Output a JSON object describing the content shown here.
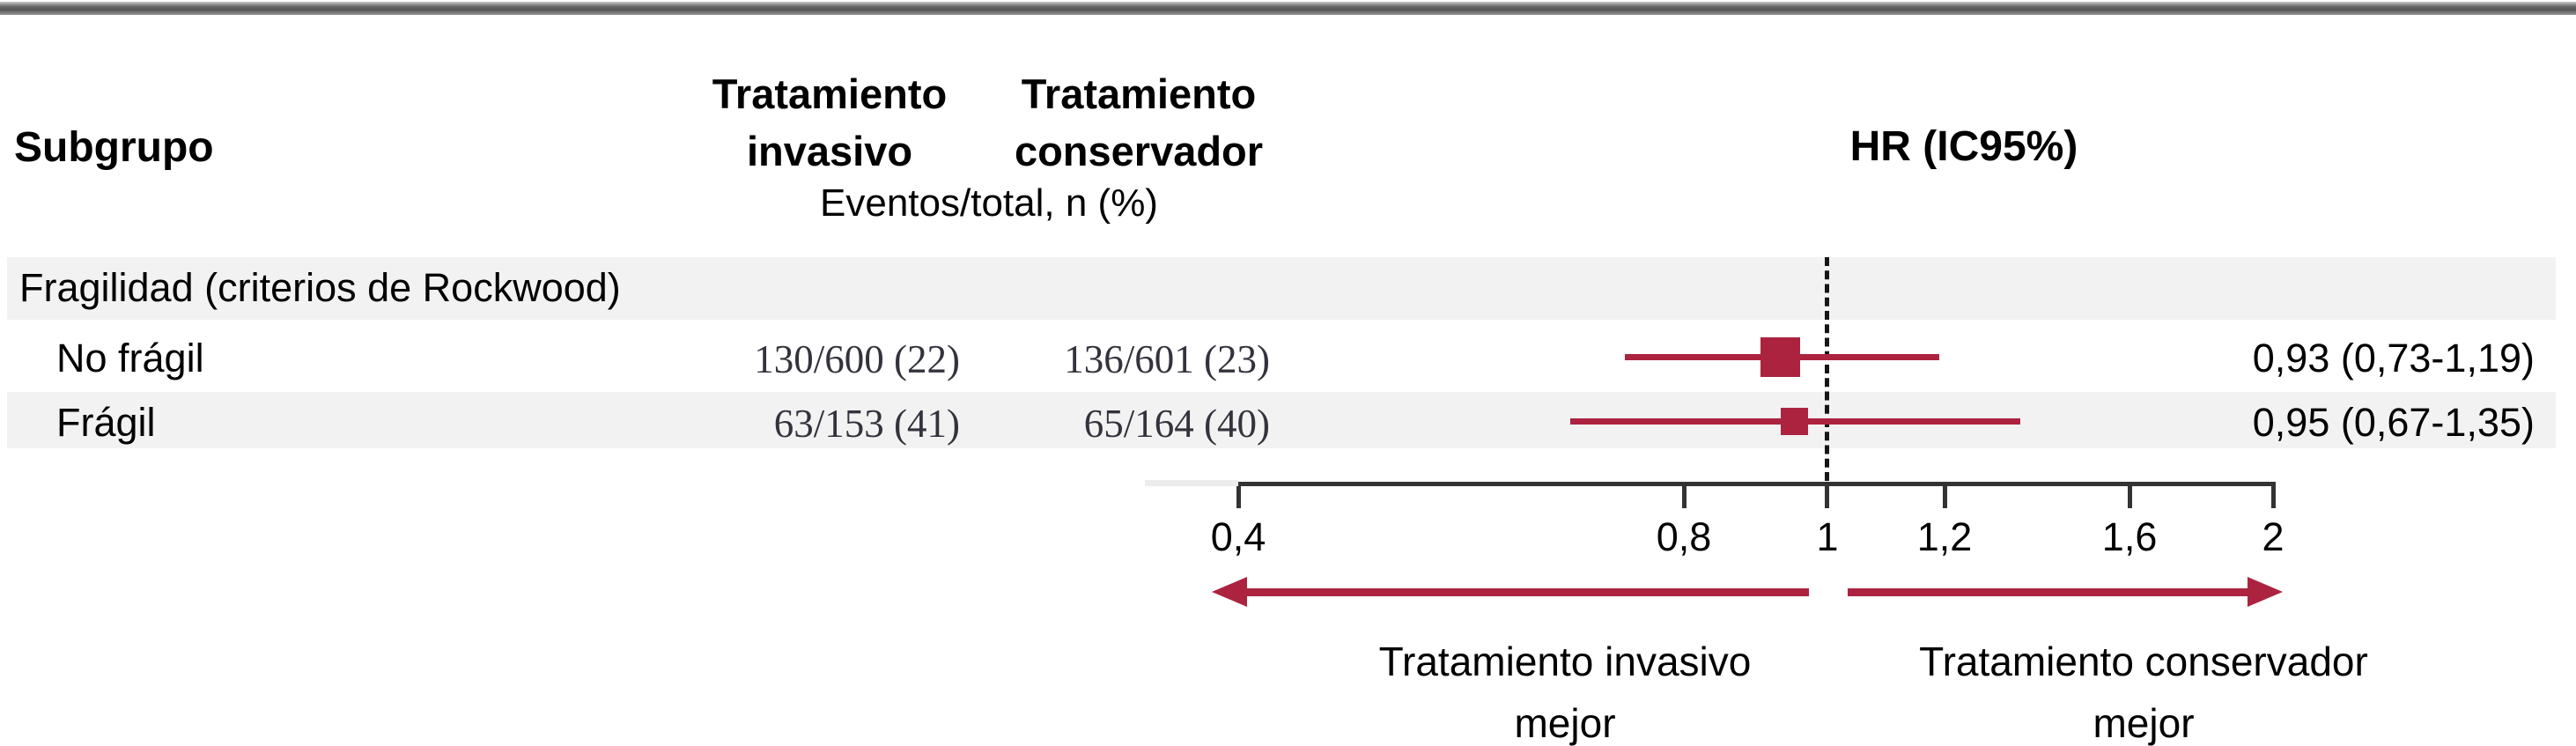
{
  "figure": {
    "columns": {
      "subgroup": "Subgrupo",
      "invasive_header": "Tratamiento\ninvasivo",
      "conservative_header": "Tratamiento\nconservador",
      "events_note": "Eventos/total, n (%)",
      "hr_header": "HR (IC95%)"
    },
    "group_header": "Fragilidad (criterios de Rockwood)",
    "rows": [
      {
        "label": "No frágil",
        "invasive": "130/600 (22)",
        "conservative": "136/601 (23)",
        "hr_label": "0,93 (0,73-1,19)"
      },
      {
        "label": "Frágil",
        "invasive": "63/153 (41)",
        "conservative": "65/164 (40)",
        "hr_label": "0,95 (0,67-1,35)"
      }
    ],
    "footer": {
      "left_line1": "Tratamiento invasivo",
      "left_line2": "mejor",
      "right_line1": "Tratamiento conservador",
      "right_line2": "mejor"
    },
    "colors": {
      "accent": "#AC2340",
      "band": "#F2F2F2",
      "axis": "#333333"
    }
  },
  "chart_data": {
    "type": "forest",
    "x_scale": "log",
    "x_range": [
      0.4,
      2
    ],
    "reference_line": 1,
    "ticks": [
      {
        "value": 0.4,
        "label": "0,4"
      },
      {
        "value": 0.8,
        "label": "0,8"
      },
      {
        "value": 1,
        "label": "1"
      },
      {
        "value": 1.2,
        "label": "1,2"
      },
      {
        "value": 1.6,
        "label": "1,6"
      },
      {
        "value": 2,
        "label": "2"
      }
    ],
    "series": [
      {
        "subgroup": "No frágil",
        "hr": 0.93,
        "ci_low": 0.73,
        "ci_high": 1.19,
        "events_invasive": "130/600 (22)",
        "events_conservative": "136/601 (23)",
        "hr_label": "0,93 (0,73-1,19)"
      },
      {
        "subgroup": "Frágil",
        "hr": 0.95,
        "ci_low": 0.67,
        "ci_high": 1.35,
        "events_invasive": "63/153 (41)",
        "events_conservative": "65/164 (40)",
        "hr_label": "0,95 (0,67-1,35)"
      }
    ],
    "direction_labels": {
      "left": "Tratamiento invasivo mejor",
      "right": "Tratamiento conservador mejor"
    }
  }
}
